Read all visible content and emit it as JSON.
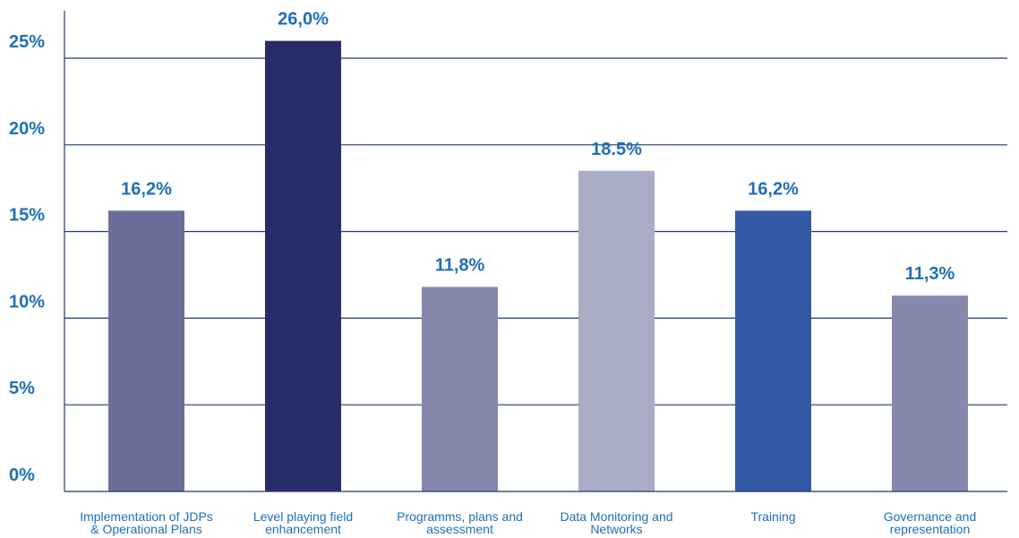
{
  "chart_data": {
    "type": "bar",
    "categories": [
      [
        "Implementation of JDPs",
        "& Operational Plans"
      ],
      [
        "Level playing field",
        "enhancement"
      ],
      [
        "Programms, plans and",
        "assessment"
      ],
      [
        "Data Monitoring and",
        "Networks"
      ],
      [
        "Training"
      ],
      [
        "Governance and",
        "representation"
      ]
    ],
    "values": [
      16.2,
      26.0,
      11.8,
      18.5,
      16.2,
      11.3
    ],
    "value_labels": [
      "16,2%",
      "26,0%",
      "11,8%",
      "18.5%",
      "16,2%",
      "11,3%"
    ],
    "bar_colors": [
      "#6b6f98",
      "#282d69",
      "#8588ab",
      "#a9adc6",
      "#3259a5",
      "#8588ab"
    ],
    "yticks": [
      0,
      5,
      10,
      15,
      20,
      25
    ],
    "ytick_labels": [
      "0%",
      "5%",
      "10%",
      "15%",
      "20%",
      "25%"
    ],
    "ylim": [
      0,
      27
    ],
    "grid": true,
    "axis_color": "#1f3a6e",
    "text_color": "#1f6fb6",
    "title": "",
    "xlabel": "",
    "ylabel": ""
  }
}
